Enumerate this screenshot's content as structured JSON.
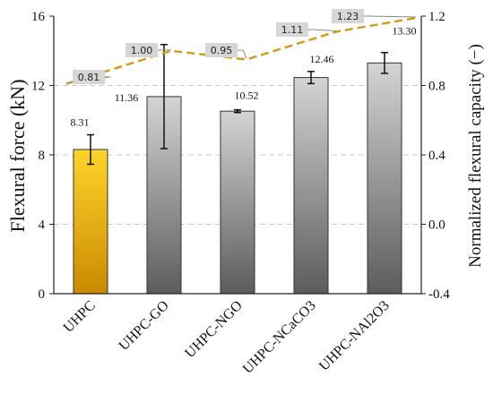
{
  "chart_data": {
    "type": "bar",
    "categories": [
      "UHPC",
      "UHPC-GO",
      "UHPC-NGO",
      "UHPC-NCaCO3",
      "UHPC-NAl2O3"
    ],
    "values": [
      8.31,
      11.36,
      10.52,
      12.46,
      13.3
    ],
    "value_labels": [
      "8.31",
      "11.36",
      "10.52",
      "12.46",
      "13.30"
    ],
    "error": [
      0.85,
      3.0,
      0.08,
      0.35,
      0.6
    ],
    "ylabel": "Flexural force (kN)",
    "ylim": [
      0,
      16
    ],
    "yticks": [
      "0",
      "4",
      "8",
      "12",
      "16"
    ],
    "y2label": "Normalized flexural capacity (−)",
    "y2lim": [
      -0.4,
      1.2
    ],
    "y2ticks": [
      "-0.4",
      "0.0",
      "0.4",
      "0.8",
      "1.2"
    ],
    "line_values": [
      0.81,
      1.0,
      0.95,
      1.11,
      1.23
    ],
    "line_labels": [
      "0.81",
      "1.00",
      "0.95",
      "1.11",
      "1.23"
    ],
    "grid": true,
    "colors": {
      "highlight_top": "#ffd42a",
      "highlight_bottom": "#c98a00",
      "bar_top": "#d4d4d4",
      "bar_bottom": "#5c5c5c",
      "line": "#d49a14",
      "label_box": "#d6d6d6"
    }
  }
}
